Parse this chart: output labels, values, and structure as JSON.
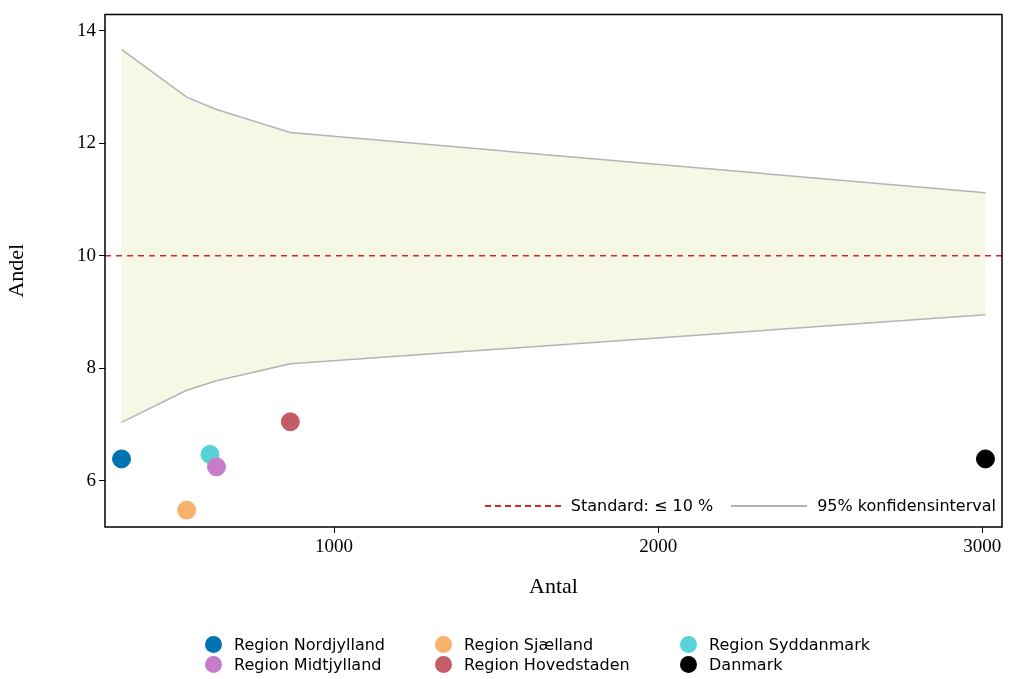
{
  "chart_data": {
    "type": "scatter",
    "xlabel": "Antal",
    "ylabel": "Andel",
    "xlim": [
      293,
      3061
    ],
    "ylim": [
      5.18,
      14.29
    ],
    "xticks": [
      1000,
      2000,
      3000
    ],
    "yticks": [
      6,
      8,
      10,
      12,
      14
    ],
    "grid": false,
    "legend": "bottom",
    "marker": "circle",
    "series": [
      {
        "name": "Region Nordjylland",
        "color": "#0072b2",
        "x": [
          344
        ],
        "values": [
          6.39
        ]
      },
      {
        "name": "Region Midtjylland",
        "color": "#c77cc9",
        "x": [
          637
        ],
        "values": [
          6.25
        ]
      },
      {
        "name": "Region Sjælland",
        "color": "#f6b26b",
        "x": [
          545
        ],
        "values": [
          5.48
        ]
      },
      {
        "name": "Region Hovedstaden",
        "color": "#c45c68",
        "x": [
          865
        ],
        "values": [
          7.05
        ]
      },
      {
        "name": "Region Syddanmark",
        "color": "#56d3d6",
        "x": [
          617
        ],
        "values": [
          6.47
        ]
      },
      {
        "name": "Danmark",
        "color": "#000000",
        "x": [
          3010
        ],
        "values": [
          6.39
        ]
      },
      {
        "name": "95% konfidensinterval",
        "type": "line",
        "marker": "none",
        "color": "#b3b3b3",
        "x": [
          344,
          545,
          637,
          865,
          3010
        ],
        "values": [
          13.67,
          12.82,
          12.6,
          12.19,
          11.12
        ],
        "lower": [
          7.04,
          7.61,
          7.78,
          8.08,
          8.95
        ],
        "upper": [
          13.67,
          12.82,
          12.6,
          12.19,
          11.12
        ]
      },
      {
        "type": "line",
        "marker": "none",
        "color": "#b3b3b3",
        "x": [
          344,
          545,
          637,
          865,
          3010
        ],
        "values": [
          7.04,
          7.61,
          7.78,
          8.08,
          8.95
        ]
      }
    ],
    "ref_lines": [
      {
        "axis": "y",
        "value": 10,
        "label": "Standard: ≤ 10 %",
        "color": "#d62728",
        "line_style": "dashed"
      }
    ]
  }
}
